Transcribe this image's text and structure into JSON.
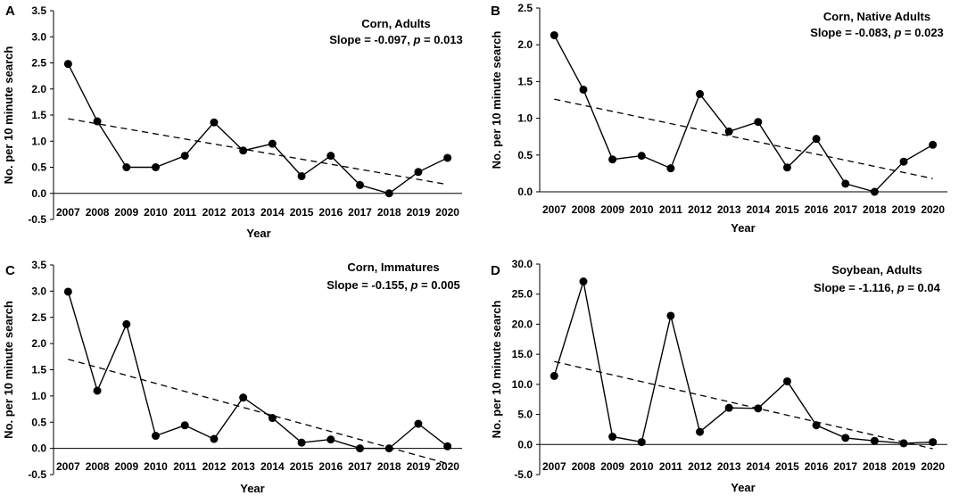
{
  "chart_data": [
    {
      "type": "line",
      "panel": "A",
      "title": "Corn, Adults",
      "annotation": {
        "slope_label": "Slope = -0.097, ",
        "p_symbol": "p",
        "p_value": " = 0.013"
      },
      "xlabel": "Year",
      "ylabel": "No. per 10 minute search",
      "x": [
        "2007",
        "2008",
        "2009",
        "2010",
        "2011",
        "2012",
        "2013",
        "2014",
        "2015",
        "2016",
        "2017",
        "2018",
        "2019",
        "2020"
      ],
      "values": [
        2.48,
        1.38,
        0.5,
        0.5,
        0.72,
        1.36,
        0.82,
        0.95,
        0.33,
        0.72,
        0.16,
        0.0,
        0.41,
        0.68
      ],
      "trend": [
        1.43,
        0.17
      ],
      "ylim": [
        -0.5,
        3.5
      ],
      "yticks": [
        "-0.5",
        "0.0",
        "0.5",
        "1.0",
        "1.5",
        "2.0",
        "2.5",
        "3.0",
        "3.5"
      ]
    },
    {
      "type": "line",
      "panel": "B",
      "title": "Corn, Native Adults",
      "annotation": {
        "slope_label": "Slope = -0.083, ",
        "p_symbol": "p",
        "p_value": " = 0.023"
      },
      "xlabel": "Year",
      "ylabel": "No. per 10 minute search",
      "x": [
        "2007",
        "2008",
        "2009",
        "2010",
        "2011",
        "2012",
        "2013",
        "2014",
        "2015",
        "2016",
        "2017",
        "2018",
        "2019",
        "2020"
      ],
      "values": [
        2.13,
        1.39,
        0.44,
        0.49,
        0.32,
        1.33,
        0.82,
        0.95,
        0.33,
        0.72,
        0.11,
        0.0,
        0.41,
        0.64
      ],
      "trend": [
        1.26,
        0.18
      ],
      "ylim": [
        0.0,
        2.5
      ],
      "yticks": [
        "0.0",
        "0.5",
        "1.0",
        "1.5",
        "2.0",
        "2.5"
      ]
    },
    {
      "type": "line",
      "panel": "C",
      "title": "Corn, Immatures",
      "annotation": {
        "slope_label": "Slope = -0.155, ",
        "p_symbol": "p",
        "p_value": " = 0.005"
      },
      "xlabel": "Year",
      "ylabel": "No. per 10 minute search",
      "x": [
        "2007",
        "2008",
        "2009",
        "2010",
        "2011",
        "2012",
        "2013",
        "2014",
        "2015",
        "2016",
        "2017",
        "2018",
        "2019",
        "2020"
      ],
      "values": [
        2.99,
        1.1,
        2.37,
        0.24,
        0.44,
        0.18,
        0.97,
        0.58,
        0.11,
        0.17,
        0.0,
        0.0,
        0.47,
        0.04
      ],
      "trend": [
        1.7,
        -0.29
      ],
      "ylim": [
        -0.5,
        3.5
      ],
      "yticks": [
        "-0.5",
        "0.0",
        "0.5",
        "1.0",
        "1.5",
        "2.0",
        "2.5",
        "3.0",
        "3.5"
      ]
    },
    {
      "type": "line",
      "panel": "D",
      "title": "Soybean, Adults",
      "annotation": {
        "slope_label": "Slope = -1.116, ",
        "p_symbol": "p",
        "p_value": " = 0.04"
      },
      "xlabel": "Year",
      "ylabel": "No. per 10 minute search",
      "x": [
        "2007",
        "2008",
        "2009",
        "2010",
        "2011",
        "2012",
        "2013",
        "2014",
        "2015",
        "2016",
        "2017",
        "2018",
        "2019",
        "2020"
      ],
      "values": [
        11.4,
        27.1,
        1.3,
        0.4,
        21.4,
        2.1,
        6.1,
        6.0,
        10.5,
        3.2,
        1.1,
        0.6,
        0.2,
        0.4
      ],
      "trend": [
        13.8,
        -0.7
      ],
      "ylim": [
        -5.0,
        30.0
      ],
      "yticks": [
        "-5.0",
        "0.0",
        "5.0",
        "10.0",
        "15.0",
        "20.0",
        "25.0",
        "30.0"
      ]
    }
  ]
}
